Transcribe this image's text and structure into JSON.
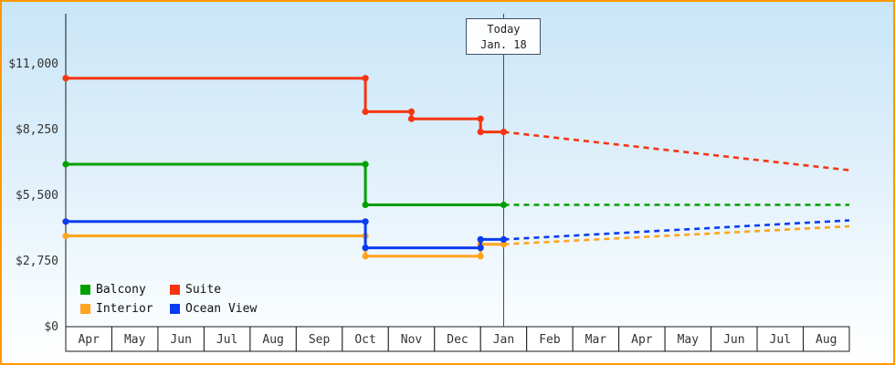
{
  "chart_data": {
    "type": "line",
    "title": "",
    "x_axis": {
      "months": [
        "Apr",
        "May",
        "Jun",
        "Jul",
        "Aug",
        "Sep",
        "Oct",
        "Nov",
        "Dec",
        "Jan",
        "Feb",
        "Mar",
        "Apr",
        "May",
        "Jun",
        "Jul",
        "Aug"
      ]
    },
    "y_axis": {
      "max": 11000,
      "ticks": [
        {
          "value": 0,
          "label": "$0"
        },
        {
          "value": 2750,
          "label": "$2,750"
        },
        {
          "value": 5500,
          "label": "$5,500"
        },
        {
          "value": 8250,
          "label": "$8,250"
        },
        {
          "value": 11000,
          "label": "$11,000"
        }
      ]
    },
    "today": {
      "line1": "Today",
      "line2": "Jan. 18",
      "month_index": 9
    },
    "legend_position": "bottom-left",
    "grid": false,
    "series": [
      {
        "name": "Balcony",
        "color": "#00a000",
        "solid": [
          [
            -0.5,
            6800
          ],
          [
            6,
            6800
          ],
          [
            6,
            5100
          ],
          [
            9,
            5100
          ]
        ],
        "dashed": [
          [
            9,
            5100
          ],
          [
            16.5,
            5100
          ]
        ]
      },
      {
        "name": "Suite",
        "color": "#f53512",
        "solid": [
          [
            -0.5,
            10400
          ],
          [
            6,
            10400
          ],
          [
            6,
            9000
          ],
          [
            7,
            9000
          ],
          [
            7,
            8700
          ],
          [
            8.5,
            8700
          ],
          [
            8.5,
            8150
          ],
          [
            9,
            8150
          ]
        ],
        "dashed": [
          [
            9,
            8150
          ],
          [
            16.5,
            6550
          ]
        ]
      },
      {
        "name": "Interior",
        "color": "#ffa41e",
        "solid": [
          [
            -0.5,
            3800
          ],
          [
            6,
            3800
          ],
          [
            6,
            2950
          ],
          [
            8.5,
            2950
          ],
          [
            8.5,
            3450
          ],
          [
            9,
            3450
          ]
        ],
        "dashed": [
          [
            9,
            3450
          ],
          [
            16.5,
            4200
          ]
        ]
      },
      {
        "name": "Ocean View",
        "color": "#0a3cf0",
        "solid": [
          [
            -0.5,
            4400
          ],
          [
            6,
            4400
          ],
          [
            6,
            3300
          ],
          [
            8.5,
            3300
          ],
          [
            8.5,
            3650
          ],
          [
            9,
            3650
          ]
        ],
        "dashed": [
          [
            9,
            3650
          ],
          [
            16.5,
            4450
          ]
        ]
      }
    ]
  }
}
